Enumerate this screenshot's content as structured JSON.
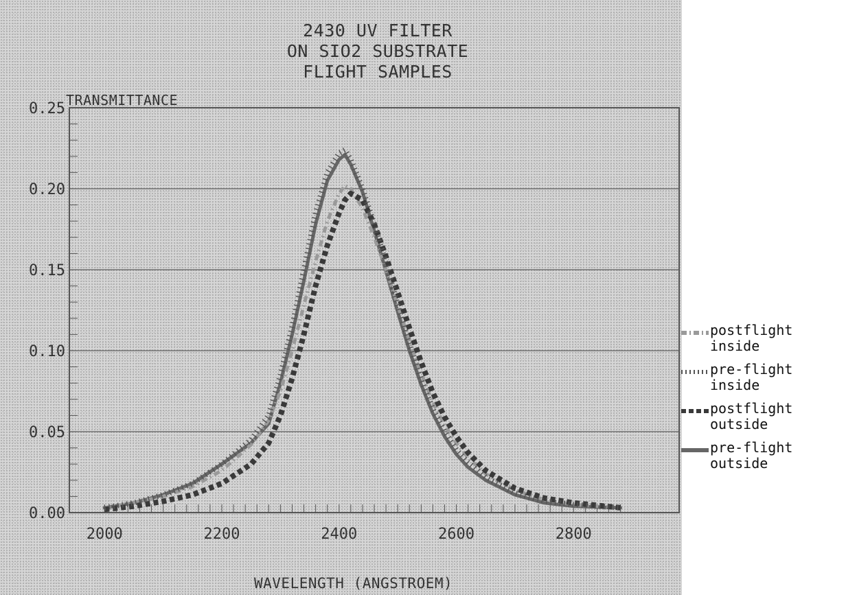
{
  "chart_data": {
    "type": "line",
    "title_lines": [
      "2430 UV FILTER",
      "ON SIO2 SUBSTRATE",
      "FLIGHT SAMPLES"
    ],
    "xlabel": "WAVELENGTH (ANGSTROEM)",
    "ylabel": "TRANSMITTANCE",
    "xlim": [
      1940,
      2980
    ],
    "ylim": [
      0,
      0.25
    ],
    "x_ticks": [
      "2000",
      "2200",
      "2400",
      "2600",
      "2800"
    ],
    "y_ticks": [
      "0.00",
      "0.05",
      "0.10",
      "0.15",
      "0.20",
      "0.25"
    ],
    "grid": "horizontal",
    "legend_placement": "right",
    "x": [
      2000,
      2050,
      2100,
      2150,
      2200,
      2250,
      2280,
      2300,
      2320,
      2340,
      2360,
      2380,
      2400,
      2410,
      2420,
      2440,
      2460,
      2480,
      2500,
      2520,
      2540,
      2560,
      2580,
      2600,
      2620,
      2650,
      2700,
      2750,
      2800,
      2880
    ],
    "series": [
      {
        "name": "postflight\ninside",
        "style": "dash-dot",
        "color": "#9a9a9a",
        "values": [
          0.003,
          0.006,
          0.01,
          0.016,
          0.026,
          0.042,
          0.057,
          0.075,
          0.1,
          0.128,
          0.155,
          0.18,
          0.197,
          0.202,
          0.2,
          0.188,
          0.17,
          0.15,
          0.128,
          0.106,
          0.086,
          0.068,
          0.054,
          0.043,
          0.034,
          0.024,
          0.014,
          0.008,
          0.005,
          0.003
        ]
      },
      {
        "name": "pre-flight\ninside",
        "style": "tick-dotted",
        "color": "#555555",
        "values": [
          0.003,
          0.006,
          0.011,
          0.018,
          0.03,
          0.045,
          0.06,
          0.085,
          0.115,
          0.15,
          0.185,
          0.21,
          0.222,
          0.224,
          0.218,
          0.2,
          0.178,
          0.154,
          0.128,
          0.104,
          0.082,
          0.064,
          0.05,
          0.039,
          0.031,
          0.022,
          0.012,
          0.007,
          0.005,
          0.003
        ]
      },
      {
        "name": "postflight\noutside",
        "style": "square-dashed",
        "color": "#3a3a3a",
        "values": [
          0.002,
          0.004,
          0.007,
          0.011,
          0.018,
          0.03,
          0.043,
          0.06,
          0.083,
          0.11,
          0.14,
          0.165,
          0.185,
          0.193,
          0.197,
          0.193,
          0.178,
          0.158,
          0.136,
          0.114,
          0.093,
          0.074,
          0.059,
          0.047,
          0.037,
          0.026,
          0.015,
          0.009,
          0.006,
          0.003
        ]
      },
      {
        "name": "pre-flight\noutside",
        "style": "solid",
        "color": "#666666",
        "values": [
          0.003,
          0.006,
          0.011,
          0.018,
          0.03,
          0.043,
          0.055,
          0.08,
          0.11,
          0.143,
          0.178,
          0.205,
          0.218,
          0.221,
          0.215,
          0.198,
          0.174,
          0.149,
          0.124,
          0.1,
          0.079,
          0.061,
          0.047,
          0.036,
          0.028,
          0.02,
          0.011,
          0.006,
          0.004,
          0.003
        ]
      }
    ]
  }
}
